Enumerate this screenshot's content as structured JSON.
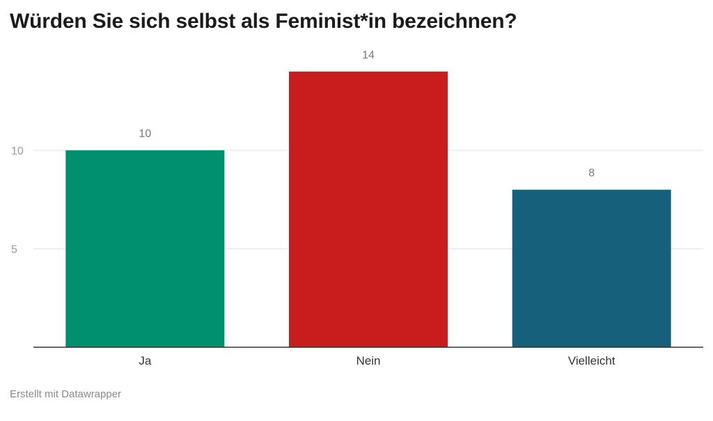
{
  "chart_data": {
    "type": "bar",
    "title": "Würden Sie sich selbst als Feminist*in bezeichnen?",
    "categories": [
      "Ja",
      "Nein",
      "Vielleicht"
    ],
    "values": [
      10,
      14,
      8
    ],
    "colors": [
      "#00906f",
      "#c91d1d",
      "#17607c"
    ],
    "y_ticks": [
      5,
      10
    ],
    "ylim": [
      0,
      15
    ],
    "grid": true,
    "xlabel": "",
    "ylabel": ""
  },
  "footer": "Erstellt mit Datawrapper"
}
